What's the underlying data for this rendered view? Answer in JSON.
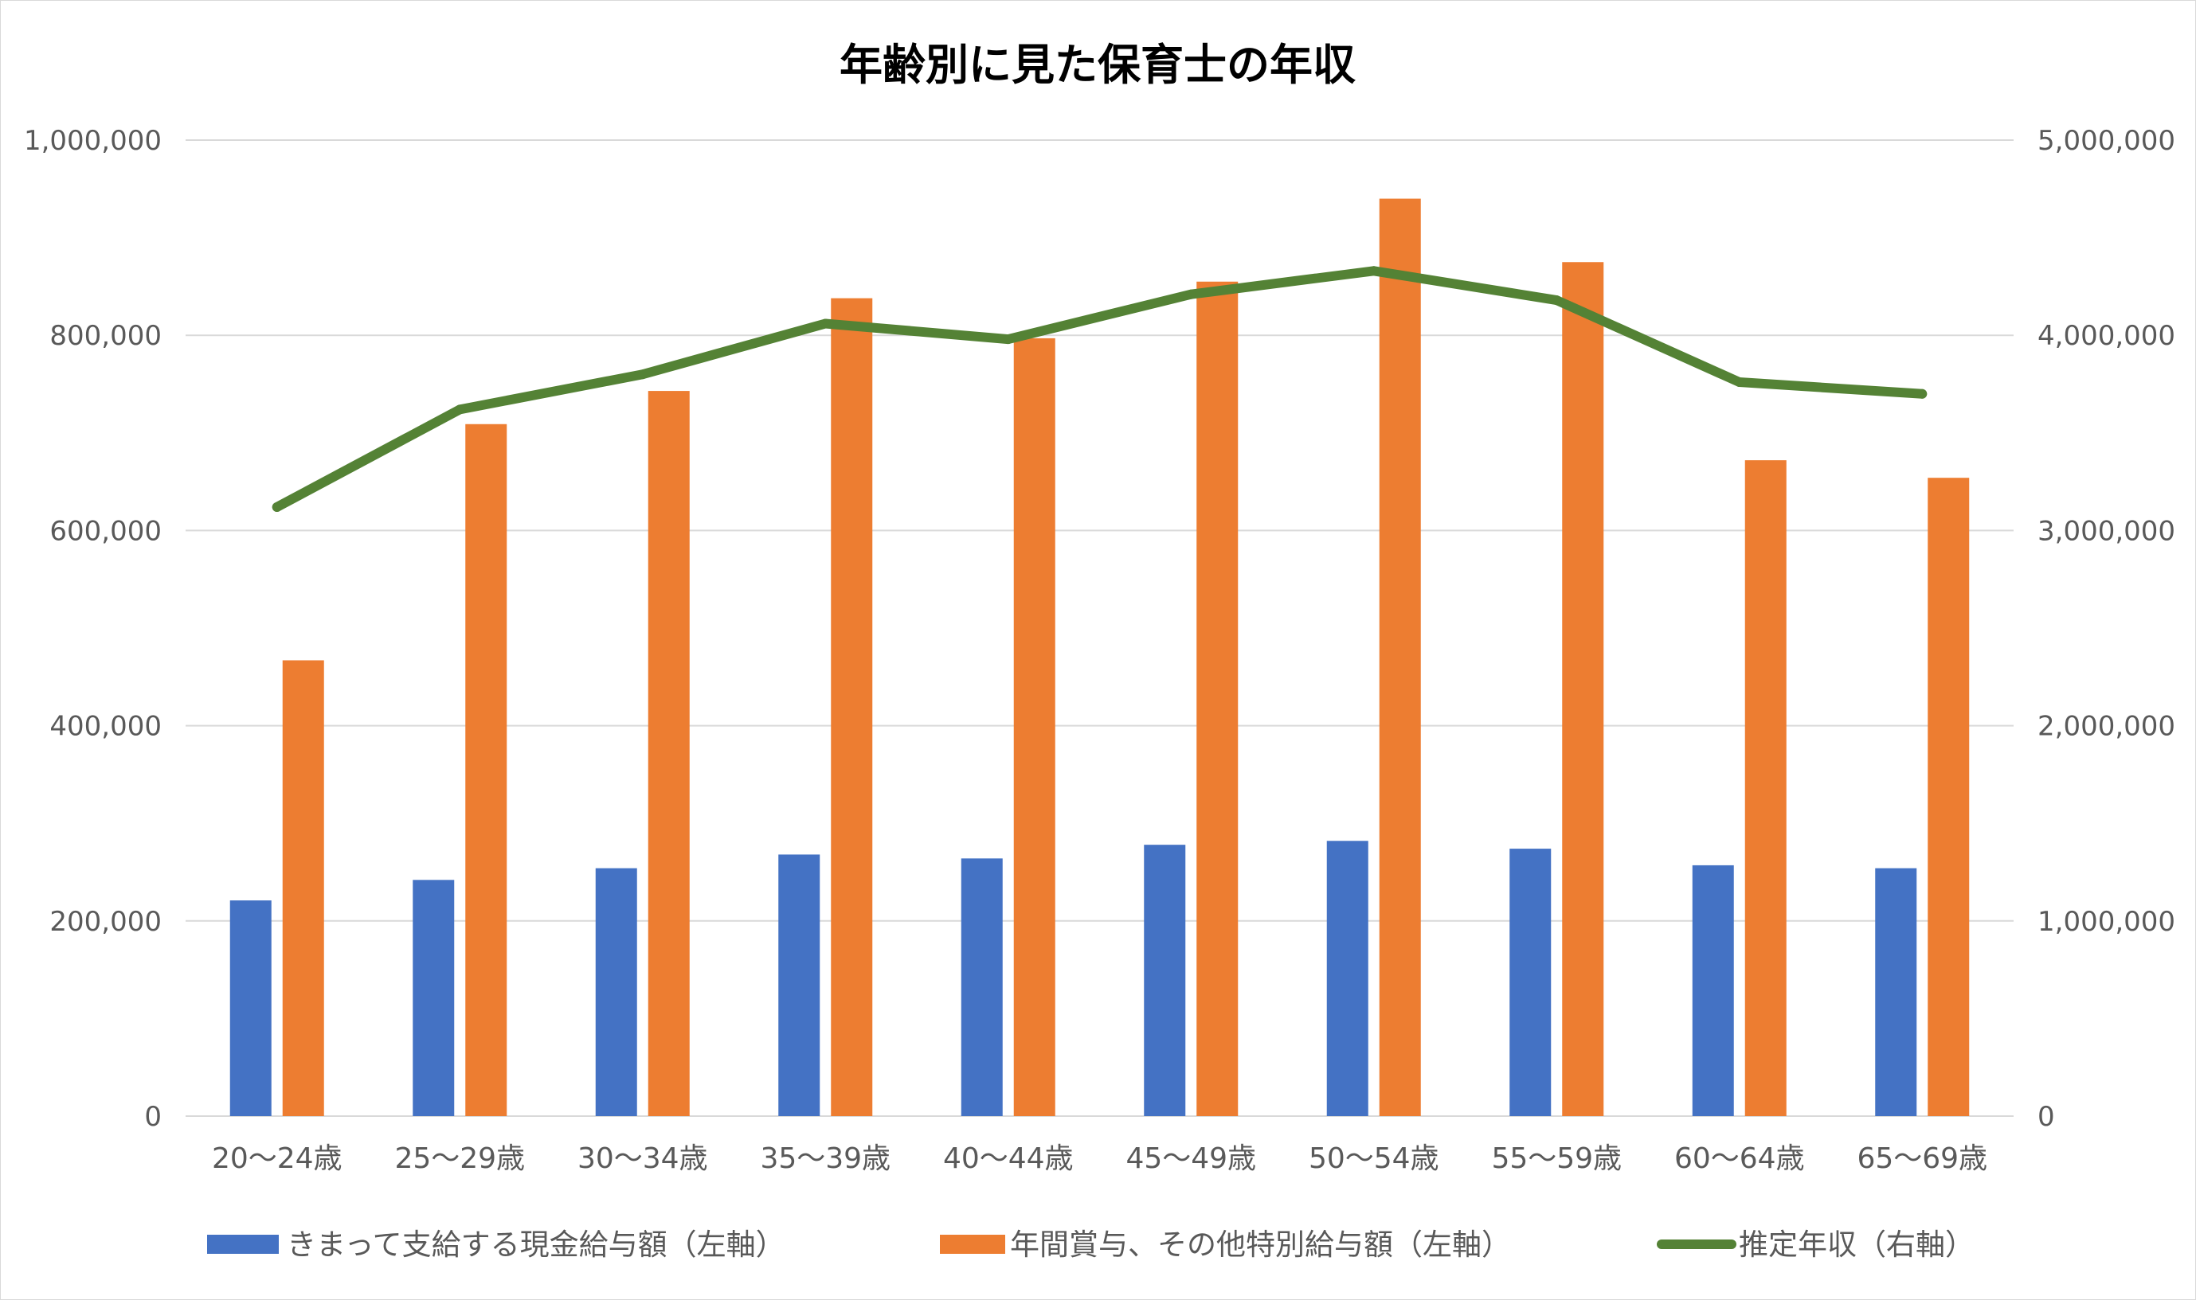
{
  "chart_data": {
    "type": "bar",
    "title": "年齢別に見た保育士の年収",
    "categories": [
      "20～24歳",
      "25～29歳",
      "30～34歳",
      "35～39歳",
      "40～44歳",
      "45～49歳",
      "50～54歳",
      "55～59歳",
      "60～64歳",
      "65～69歳"
    ],
    "series": [
      {
        "name": "きまって支給する現金給与額（左軸）",
        "type": "bar",
        "axis": "left",
        "color": "#4472C4",
        "values": [
          221000,
          242000,
          254000,
          268000,
          264000,
          278000,
          282000,
          274000,
          257000,
          254000
        ]
      },
      {
        "name": "年間賞与、その他特別給与額（左軸）",
        "type": "bar",
        "axis": "left",
        "color": "#ED7D31",
        "values": [
          467000,
          709000,
          743000,
          838000,
          797000,
          855000,
          940000,
          875000,
          672000,
          654000
        ]
      },
      {
        "name": "推定年収（右軸）",
        "type": "line",
        "axis": "right",
        "color": "#548235",
        "values": [
          3120000,
          3620000,
          3800000,
          4060000,
          3980000,
          4210000,
          4330000,
          4180000,
          3760000,
          3700000
        ]
      }
    ],
    "y_left": {
      "min": 0,
      "max": 1000000,
      "ticks": [
        "0",
        "200,000",
        "400,000",
        "600,000",
        "800,000",
        "1,000,000"
      ]
    },
    "y_right": {
      "min": 0,
      "max": 5000000,
      "ticks": [
        "0",
        "1,000,000",
        "2,000,000",
        "3,000,000",
        "4,000,000",
        "5,000,000"
      ]
    },
    "grid": true,
    "legend_position": "bottom",
    "gridline_color": "#d9d9d9",
    "text_color": "#595959"
  }
}
